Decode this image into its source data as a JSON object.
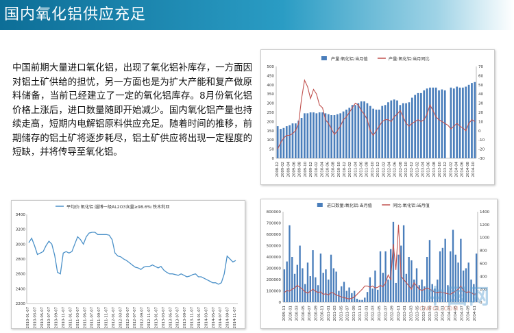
{
  "page": {
    "title": "国内氧化铝供应充足",
    "paragraph": "中国前期大量进口氧化铝，出现了氧化铝补库存，一方面因对铝土矿供给的担忧，另一方面也是为扩大产能和复产做原料储备，当前已经建立了一定的氧化铝库存。8月份氧化铝价格上涨后，进口数量随即开始减少。国内氧化铝产量也持续走高，短期内电解铝原料供应充足。随着时间的推移，前期储存的铝土矿将逐步耗尽，铝土矿供应将出现一定程度的短缺，并将传导至氧化铝。",
    "watermark": "中国网",
    "watermark_sub": "CNFOL.COM"
  },
  "colors": {
    "bar": "#4a7ebb",
    "line": "#c0504d",
    "price_line": "#4a90c8",
    "axis": "#888888",
    "title_bg": "#1b86b2"
  },
  "chart_data": [
    {
      "type": "bar+line",
      "legend": [
        "产量:氧化铝:当月值",
        "产量:氧化铝:当月同比"
      ],
      "legend_position": "top-center",
      "grid": false,
      "y_left": {
        "range": [
          0,
          500
        ],
        "ticks": [
          "0",
          "50",
          "100",
          "150",
          "200",
          "250",
          "300",
          "350",
          "400",
          "450",
          "500"
        ]
      },
      "y_right": {
        "range": [
          -30,
          70
        ],
        "ticks": [
          "-30",
          "-20",
          "-10",
          "0",
          "10",
          "20",
          "30",
          "40",
          "50",
          "60",
          "70"
        ]
      },
      "x_labels": [
        "2008-12",
        "2009-02",
        "2009-04",
        "2009-06",
        "2009-08",
        "2009-10",
        "2009-12",
        "2010-02",
        "2010-04",
        "2010-06",
        "2010-08",
        "2010-10",
        "2010-12",
        "2011-02",
        "2011-04",
        "2011-06",
        "2011-08",
        "2011-10",
        "2011-12",
        "2012-02",
        "2012-04",
        "2012-06",
        "2012-08",
        "2012-10",
        "2012-12",
        "2013-02",
        "2013-04",
        "2013-06",
        "2013-08",
        "2013-10",
        "2013-12",
        "2014-02",
        "2014-04",
        "2014-06",
        "2014-08",
        "2014-10"
      ],
      "bar_values": [
        175,
        160,
        165,
        175,
        180,
        190,
        190,
        205,
        220,
        245,
        245,
        250,
        250,
        245,
        250,
        250,
        245,
        240,
        235,
        235,
        240,
        245,
        255,
        265,
        275,
        290,
        290,
        300,
        310,
        310,
        300,
        285,
        270,
        265,
        265,
        285,
        290,
        305,
        315,
        320,
        315,
        290,
        300,
        300,
        305,
        330,
        345,
        355,
        355,
        370,
        380,
        385,
        385,
        385,
        370,
        375,
        370,
        null,
        385,
        380,
        390,
        385,
        385,
        390,
        400,
        410,
        415
      ],
      "line_values": [
        -20,
        -13,
        -8,
        -5,
        -5,
        -3,
        0,
        8,
        35,
        55,
        48,
        35,
        45,
        40,
        28,
        25,
        12,
        8,
        2,
        -4,
        0,
        5,
        12,
        15,
        20,
        25,
        30,
        28,
        22,
        18,
        12,
        0,
        -5,
        0,
        5,
        10,
        12,
        12,
        10,
        15,
        18,
        22,
        15,
        8,
        5,
        8,
        10,
        12,
        10,
        12,
        18,
        28,
        22,
        15,
        12,
        10,
        8,
        6,
        2,
        5,
        8,
        5,
        3,
        0,
        8,
        12,
        10
      ]
    },
    {
      "type": "line",
      "legend": [
        "平均价:氧化铝:淄博一级AL2O3含量≥98.6%:铁木利亚"
      ],
      "legend_position": "top-center",
      "grid": false,
      "y_range": [
        2200,
        3400
      ],
      "y_ticks": [
        "2200",
        "2400",
        "2600",
        "2800",
        "3000",
        "3200",
        "3400"
      ],
      "x_labels": [
        "2010-01-07",
        "2010-03-07",
        "2010-05-07",
        "2010-07-07",
        "2010-09-07",
        "2010-11-07",
        "2011-01-07",
        "2011-03-07",
        "2011-05-07",
        "2011-07-07",
        "2011-09-07",
        "2011-11-07",
        "2012-01-07",
        "2012-03-07",
        "2012-05-07",
        "2012-07-07",
        "2012-09-07",
        "2012-11-07",
        "2013-01-07",
        "2013-03-07",
        "2013-05-07",
        "2013-07-07",
        "2013-09-07",
        "2013-11-07",
        "2014-01-07",
        "2014-03-07",
        "2014-05-07",
        "2014-07-07",
        "2014-09-07",
        "2014-11-07"
      ],
      "values": [
        3020,
        3080,
        2980,
        2860,
        2880,
        2900,
        2980,
        3040,
        3000,
        2850,
        2620,
        2600,
        2880,
        2900,
        2880,
        2900,
        3000,
        3100,
        3060,
        3000,
        3100,
        3150,
        3160,
        3160,
        3130,
        3130,
        3130,
        3130,
        3120,
        3060,
        2880,
        2840,
        2830,
        2800,
        2780,
        2750,
        2720,
        2690,
        2680,
        2660,
        2690,
        2700,
        2700,
        2720,
        2700,
        2680,
        2700,
        2650,
        2620,
        2600,
        2600,
        2590,
        2580,
        2600,
        2580,
        2560,
        2570,
        2590,
        2600,
        2560,
        2560,
        2540,
        2520,
        2500,
        2480,
        2480,
        2460,
        2480,
        2600,
        2840,
        2800,
        2760,
        2780
      ]
    },
    {
      "type": "bar+line",
      "legend": [
        "进口数量:氧化铝:当月值",
        "同比:氧化铝:当月值"
      ],
      "legend_position": "top-center",
      "grid": false,
      "y_left": {
        "range": [
          0,
          800000
        ],
        "ticks": [
          "0",
          "100000",
          "200000",
          "300000",
          "400000",
          "500000",
          "600000",
          "700000",
          "800000"
        ]
      },
      "y_right": {
        "range": [
          0,
          1400
        ],
        "ticks": [
          "0",
          "200",
          "400",
          "600",
          "800",
          "1000",
          "1200",
          "1400"
        ]
      },
      "x_labels": [
        "2009-11",
        "2010-01",
        "2010-03",
        "2010-05",
        "2010-07",
        "2010-09",
        "2010-11",
        "2011-01",
        "2011-03",
        "2011-05",
        "2011-07",
        "2011-09",
        "2011-11",
        "2012-01",
        "2012-03",
        "2012-05",
        "2012-07",
        "2012-09",
        "2012-11",
        "2013-01",
        "2013-03",
        "2013-05",
        "2013-07",
        "2013-09",
        "2013-11",
        "2014-01",
        "2014-03",
        "2014-05",
        "2014-07",
        "2014-09",
        "2014-11"
      ],
      "bar_values": [
        290000,
        360000,
        680000,
        400000,
        250000,
        330000,
        500000,
        300000,
        160000,
        350000,
        230000,
        460000,
        220000,
        150000,
        430000,
        260000,
        290000,
        200000,
        420000,
        300000,
        270000,
        100000,
        140000,
        180000,
        100000,
        130000,
        80000,
        100000,
        30000,
        20000,
        20000,
        40000,
        90000,
        220000,
        120000,
        280000,
        110000,
        450000,
        260000,
        450000,
        200000,
        470000,
        710000,
        170000,
        420000,
        500000,
        680000,
        250000,
        400000,
        370000,
        200000,
        300000,
        150000,
        200000,
        140000,
        400000,
        550000,
        160000,
        120000,
        200000,
        450000,
        480000,
        560000,
        150000,
        450000,
        640000,
        420000,
        350000,
        560000,
        280000,
        300000,
        350000,
        200000,
        160000,
        430000
      ],
      "line_values": [
        150,
        180,
        170,
        200,
        220,
        260,
        230,
        200,
        160,
        140,
        170,
        200,
        170,
        150,
        160,
        120,
        130,
        110,
        150,
        140,
        110,
        100,
        80,
        70,
        60,
        50,
        60,
        80,
        120,
        160,
        200,
        250,
        250,
        230,
        250,
        220,
        230,
        260,
        240,
        300,
        420,
        350,
        900,
        500,
        1200,
        400,
        350,
        300,
        250,
        200,
        300,
        250,
        200,
        180,
        200,
        220,
        200,
        180,
        150,
        150,
        160,
        150,
        140,
        130,
        120,
        150,
        170,
        200,
        250,
        180,
        150,
        160,
        150,
        120,
        130
      ]
    }
  ]
}
